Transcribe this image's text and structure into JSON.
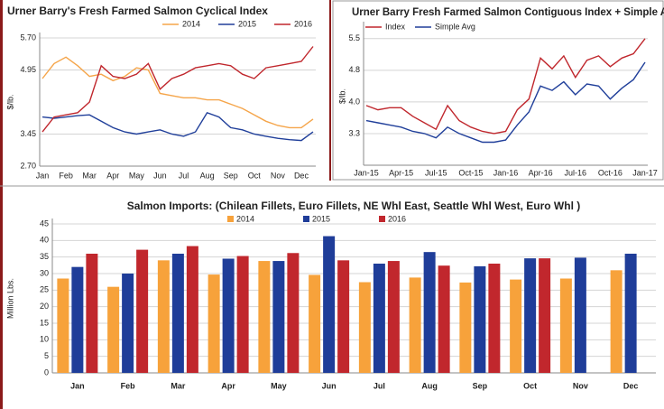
{
  "chart_data": [
    {
      "type": "line",
      "title": "Urner Barry's Fresh Farmed Salmon Cyclical Index",
      "ylabel": "$/lb.",
      "categories": [
        "Jan",
        null,
        "Feb",
        null,
        "Mar",
        null,
        "Apr",
        null,
        "May",
        null,
        "Jun",
        null,
        "Jul",
        null,
        "Aug",
        null,
        "Sep",
        null,
        "Oct",
        null,
        "Nov",
        null,
        "Dec",
        null
      ],
      "series": [
        {
          "name": "2014",
          "color": "#f5a54a",
          "values": [
            4.75,
            5.1,
            5.25,
            5.05,
            4.8,
            4.85,
            4.7,
            4.8,
            5.0,
            4.95,
            4.4,
            4.35,
            4.3,
            4.3,
            4.25,
            4.25,
            4.15,
            4.05,
            3.9,
            3.75,
            3.65,
            3.6,
            3.6,
            3.8
          ]
        },
        {
          "name": "2015",
          "color": "#203f9a",
          "values": [
            3.85,
            3.82,
            3.85,
            3.88,
            3.9,
            3.75,
            3.6,
            3.5,
            3.45,
            3.5,
            3.55,
            3.45,
            3.4,
            3.5,
            3.95,
            3.85,
            3.6,
            3.55,
            3.45,
            3.4,
            3.35,
            3.32,
            3.3,
            3.5
          ]
        },
        {
          "name": "2016",
          "color": "#c0272d",
          "values": [
            3.5,
            3.85,
            3.9,
            3.95,
            4.2,
            5.05,
            4.8,
            4.75,
            4.85,
            5.1,
            4.5,
            4.75,
            4.85,
            5.0,
            5.05,
            5.1,
            5.05,
            4.85,
            4.75,
            5.0,
            5.05,
            5.1,
            5.15,
            5.5
          ]
        }
      ],
      "ylim": [
        2.7,
        5.7
      ],
      "yticks": [
        {
          "value": 2.7,
          "label": "2.70"
        },
        3.45,
        4.95,
        {
          "value": 5.7,
          "label": "5.70"
        }
      ],
      "grid": true,
      "legend": "top"
    },
    {
      "type": "line",
      "title": "Urner Barry Fresh Farmed Salmon Contiguous Index + Simple Avg",
      "ylabel": "$/lb.",
      "categories": [
        "Jan-15",
        null,
        null,
        "Apr-15",
        null,
        null,
        "Jul-15",
        null,
        null,
        "Oct-15",
        null,
        null,
        "Jan-16",
        null,
        null,
        "Apr-16",
        null,
        null,
        "Jul-16",
        null,
        null,
        "Oct-16",
        null,
        null,
        "Jan-17"
      ],
      "series": [
        {
          "name": "Index",
          "color": "#c0272d",
          "values": [
            3.95,
            3.85,
            3.9,
            3.9,
            3.7,
            3.55,
            3.4,
            3.95,
            3.6,
            3.45,
            3.35,
            3.3,
            3.35,
            3.85,
            4.1,
            5.05,
            4.8,
            5.1,
            4.6,
            5.0,
            5.1,
            4.85,
            5.05,
            5.15,
            5.5
          ]
        },
        {
          "name": "Simple Avg",
          "color": "#203f9a",
          "values": [
            3.6,
            3.55,
            3.5,
            3.45,
            3.35,
            3.3,
            3.2,
            3.45,
            3.3,
            3.2,
            3.1,
            3.1,
            3.15,
            3.5,
            3.8,
            4.4,
            4.3,
            4.5,
            4.2,
            4.45,
            4.4,
            4.1,
            4.35,
            4.55,
            4.95
          ]
        }
      ],
      "ylim": [
        2.5667,
        5.7667
      ],
      "yticks": [
        3.3,
        {
          "value": 4.0333,
          "label": "4.0"
        },
        {
          "value": 4.7667,
          "label": "4.8"
        },
        5.5
      ],
      "grid": true,
      "legend": "top"
    },
    {
      "type": "bar",
      "title": "Salmon Imports: (Chilean Fillets, Euro Fillets, NE Whl East, Seattle Whl West, Euro Whl )",
      "ylabel": "Million Lbs.",
      "categories": [
        "Jan",
        "Feb",
        "Mar",
        "Apr",
        "May",
        "Jun",
        "Jul",
        "Aug",
        "Sep",
        "Oct",
        "Nov",
        "Dec"
      ],
      "series": [
        {
          "name": "2014",
          "color": "#f7a23b",
          "values": [
            28.5,
            26,
            34,
            29.7,
            33.8,
            29.6,
            27.4,
            28.8,
            27.3,
            28.2,
            28.5,
            31
          ]
        },
        {
          "name": "2015",
          "color": "#1f3d99",
          "values": [
            32,
            30,
            36,
            34.5,
            33.8,
            41.3,
            33,
            36.5,
            32.2,
            34.6,
            34.8,
            36
          ]
        },
        {
          "name": "2016",
          "color": "#c1272d",
          "values": [
            36,
            37.2,
            38.3,
            35.3,
            36.2,
            34,
            33.8,
            32.4,
            33,
            34.6,
            null,
            null
          ]
        }
      ],
      "ylim": [
        0,
        45
      ],
      "yticks": [
        0,
        5,
        10,
        15,
        20,
        25,
        30,
        35,
        40,
        45
      ],
      "grid": true,
      "legend": "top"
    }
  ]
}
